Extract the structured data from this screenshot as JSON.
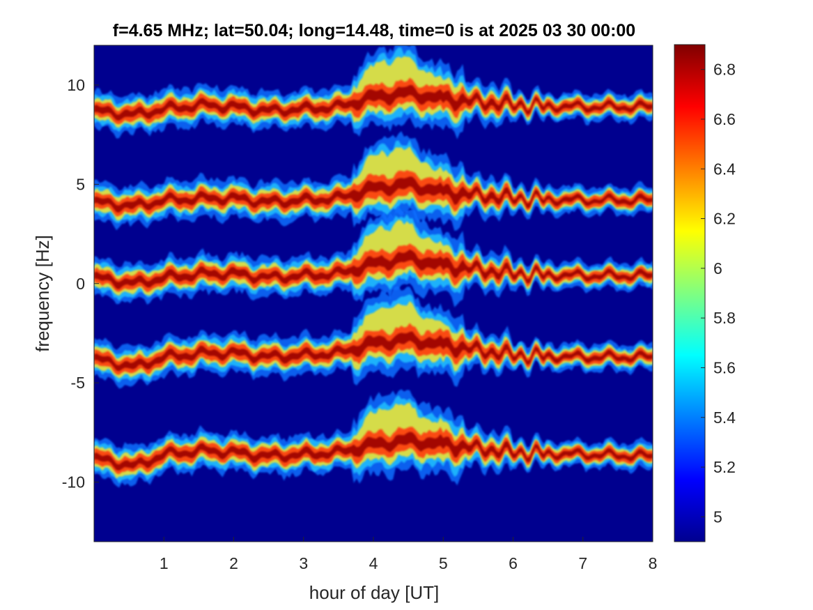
{
  "chart_data": {
    "type": "heatmap",
    "title": "f=4.65 MHz;  lat=50.04; long=14.48, time=0 is at 2025 03 30 00:00",
    "xlabel": "hour of day [UT]",
    "ylabel": "frequency [Hz]",
    "xlim": [
      0,
      8
    ],
    "ylim": [
      -13,
      12
    ],
    "xticks": [
      1,
      2,
      3,
      4,
      5,
      6,
      7,
      8
    ],
    "xtick_labels": [
      "1",
      "2",
      "3",
      "4",
      "5",
      "6",
      "7",
      "8"
    ],
    "yticks": [
      10,
      5,
      0,
      -5,
      -10
    ],
    "ytick_labels": [
      "10",
      "5",
      "0",
      "-5",
      "-10"
    ],
    "colormap": "jet",
    "background_color": "#00008f",
    "colorbar": {
      "range": [
        4.9,
        6.9
      ],
      "ticks": [
        6.8,
        6.6,
        6.4,
        6.2,
        6,
        5.8,
        5.6,
        5.4,
        5.2,
        5
      ],
      "tick_labels": [
        "6.8",
        "6.6",
        "6.4",
        "6.2",
        "6",
        "5.8",
        "5.6",
        "5.4",
        "5.2",
        "5"
      ]
    },
    "bands": [
      {
        "center_at_hour_0": 8.7,
        "track": [
          [
            0,
            8.7
          ],
          [
            0.6,
            8.5
          ],
          [
            1,
            8.8
          ],
          [
            1.6,
            9.0
          ],
          [
            2,
            8.9
          ],
          [
            2.5,
            8.7
          ],
          [
            3,
            8.8
          ],
          [
            3.5,
            8.9
          ],
          [
            4,
            9.4
          ],
          [
            4.5,
            9.6
          ],
          [
            5,
            9.3
          ],
          [
            6,
            9.0
          ],
          [
            7,
            8.9
          ],
          [
            8,
            8.9
          ]
        ]
      },
      {
        "center_at_hour_0": 4.1,
        "track": [
          [
            0,
            4.1
          ],
          [
            0.6,
            3.9
          ],
          [
            1,
            4.2
          ],
          [
            1.6,
            4.3
          ],
          [
            2,
            4.3
          ],
          [
            2.5,
            4.1
          ],
          [
            3,
            4.2
          ],
          [
            3.5,
            4.3
          ],
          [
            4,
            4.8
          ],
          [
            4.5,
            5.0
          ],
          [
            5,
            4.6
          ],
          [
            6,
            4.3
          ],
          [
            7,
            4.2
          ],
          [
            8,
            4.2
          ]
        ]
      },
      {
        "center_at_hour_0": 0.3,
        "track": [
          [
            0,
            0.3
          ],
          [
            0.6,
            0.0
          ],
          [
            1,
            0.3
          ],
          [
            1.6,
            0.5
          ],
          [
            2,
            0.5
          ],
          [
            2.5,
            0.3
          ],
          [
            3,
            0.4
          ],
          [
            3.5,
            0.5
          ],
          [
            4,
            1.0
          ],
          [
            4.5,
            1.3
          ],
          [
            5,
            0.9
          ],
          [
            6,
            0.5
          ],
          [
            7,
            0.4
          ],
          [
            8,
            0.4
          ]
        ]
      },
      {
        "center_at_hour_0": -3.8,
        "track": [
          [
            0,
            -3.8
          ],
          [
            0.6,
            -4.2
          ],
          [
            1,
            -3.7
          ],
          [
            1.6,
            -3.5
          ],
          [
            2,
            -3.5
          ],
          [
            2.5,
            -3.7
          ],
          [
            3,
            -3.6
          ],
          [
            3.5,
            -3.5
          ],
          [
            4,
            -3.0
          ],
          [
            4.5,
            -2.8
          ],
          [
            5,
            -3.1
          ],
          [
            6,
            -3.6
          ],
          [
            7,
            -3.7
          ],
          [
            8,
            -3.7
          ]
        ]
      },
      {
        "center_at_hour_0": -8.8,
        "track": [
          [
            0,
            -8.8
          ],
          [
            0.6,
            -9.2
          ],
          [
            1,
            -8.6
          ],
          [
            1.6,
            -8.4
          ],
          [
            2,
            -8.5
          ],
          [
            2.5,
            -8.7
          ],
          [
            3,
            -8.6
          ],
          [
            3.5,
            -8.5
          ],
          [
            4,
            -8.1
          ],
          [
            4.5,
            -7.9
          ],
          [
            5,
            -8.1
          ],
          [
            6,
            -8.5
          ],
          [
            7,
            -8.6
          ],
          [
            8,
            -8.7
          ]
        ]
      }
    ]
  }
}
